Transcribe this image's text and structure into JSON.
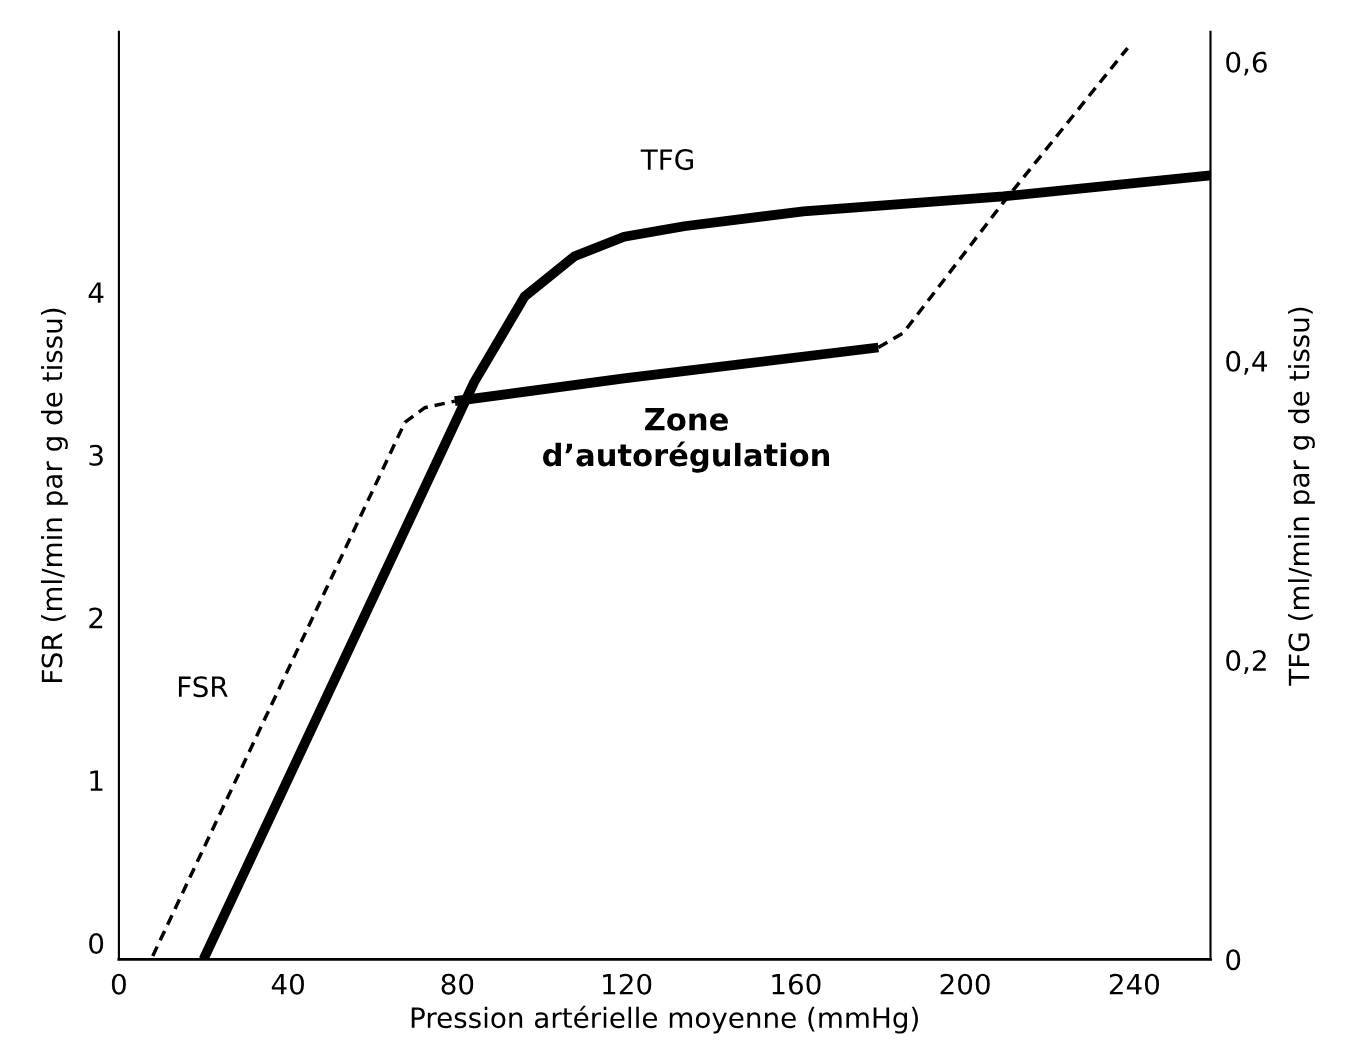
{
  "chart_data": {
    "type": "line",
    "xlabel": "Pression artérielle moyenne (mmHg)",
    "ylabel": "FSR (ml/min par g de tissu)",
    "y2label": "TFG (ml/min par g de tissu)",
    "xlim": [
      0,
      258
    ],
    "xticks": [
      0,
      40,
      80,
      120,
      160,
      200,
      240
    ],
    "ylim": [
      -0.1,
      5.6
    ],
    "yticks": [
      0,
      1,
      2,
      3,
      4
    ],
    "y2lim": [
      0,
      0.62
    ],
    "y2ticks": [
      {
        "value": 0,
        "label": "0"
      },
      {
        "value": 0.2,
        "label": "0,2"
      },
      {
        "value": 0.4,
        "label": "0,4"
      },
      {
        "value": 0.6,
        "label": "0,6"
      }
    ],
    "grid": false,
    "marker": "none",
    "series": [
      {
        "name": "FSR",
        "color": "#000000",
        "line_style": "dashed",
        "x": [
          8,
          67.6,
          72.3,
          79.4
        ],
        "values": [
          -0.08,
          3.2,
          3.29,
          3.33
        ]
      },
      {
        "color": "#000000",
        "line_style": "solid",
        "x": [
          79.4,
          119.4,
          179.5
        ],
        "values": [
          3.33,
          3.47,
          3.66
        ]
      },
      {
        "color": "#000000",
        "line_style": "dashed",
        "x": [
          179.5,
          185.4,
          192.5,
          209,
          238.4
        ],
        "values": [
          3.66,
          3.75,
          3.99,
          4.55,
          5.5
        ]
      },
      {
        "name": "TFG",
        "color": "#000000",
        "line_style": "solid",
        "axis": "y2",
        "x": [
          20,
          84,
          95.9,
          107.7,
          119.4,
          133.6,
          161.8,
          209,
          258
        ],
        "values": [
          0,
          0.386,
          0.443,
          0.47,
          0.483,
          0.49,
          0.5,
          0.51,
          0.524
        ]
      }
    ],
    "annotations": [
      "Zone\nd’autorégulation"
    ]
  }
}
